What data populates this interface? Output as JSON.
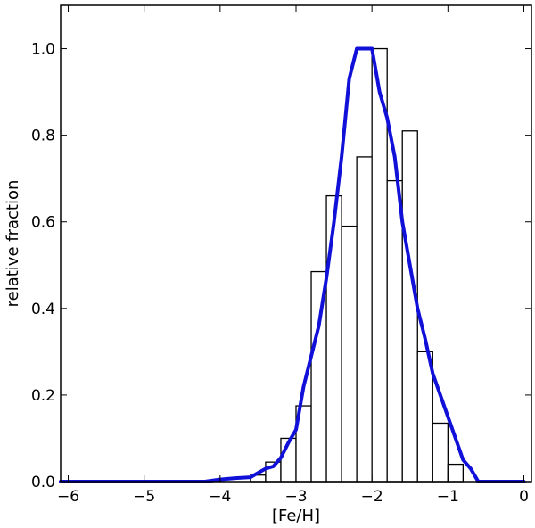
{
  "chart_data": {
    "type": "bar",
    "xlabel": "[Fe/H]",
    "ylabel": "relative fraction",
    "xlim": [
      -6.1,
      0.1
    ],
    "ylim": [
      0.0,
      1.1
    ],
    "x_ticks": [
      -6,
      -5,
      -4,
      -3,
      -2,
      -1,
      0
    ],
    "x_tick_labels": [
      "−6",
      "−5",
      "−4",
      "−3",
      "−2",
      "−1",
      "0"
    ],
    "y_ticks": [
      0.0,
      0.2,
      0.4,
      0.6,
      0.8,
      1.0
    ],
    "y_tick_labels": [
      "0.0",
      "0.2",
      "0.4",
      "0.6",
      "0.8",
      "1.0"
    ],
    "grid": false,
    "histogram": {
      "bin_width": 0.2,
      "bin_left_edges": [
        -3.6,
        -3.4,
        -3.2,
        -3.0,
        -2.8,
        -2.6,
        -2.4,
        -2.2,
        -2.0,
        -1.8,
        -1.6,
        -1.4,
        -1.2,
        -1.0
      ],
      "values": [
        0.015,
        0.045,
        0.1,
        0.175,
        0.485,
        0.66,
        0.59,
        0.75,
        1.0,
        0.695,
        0.81,
        0.3,
        0.135,
        0.04
      ],
      "fill": "#ffffff",
      "edge_color": "#000000"
    },
    "series": [
      {
        "type": "line",
        "color": "#1010d8",
        "x": [
          -6.1,
          -5.5,
          -5.0,
          -4.5,
          -4.2,
          -4.0,
          -3.8,
          -3.6,
          -3.5,
          -3.4,
          -3.3,
          -3.2,
          -3.1,
          -3.0,
          -2.9,
          -2.8,
          -2.7,
          -2.6,
          -2.5,
          -2.4,
          -2.3,
          -2.2,
          -2.1,
          -2.0,
          -1.9,
          -1.8,
          -1.7,
          -1.6,
          -1.5,
          -1.4,
          -1.3,
          -1.2,
          -1.1,
          -1.0,
          -0.9,
          -0.8,
          -0.7,
          -0.6,
          -0.5,
          -0.4,
          0.0
        ],
        "y": [
          0.0,
          0.0,
          0.0,
          0.0,
          0.0,
          0.005,
          0.008,
          0.01,
          0.02,
          0.03,
          0.035,
          0.055,
          0.09,
          0.12,
          0.22,
          0.29,
          0.36,
          0.47,
          0.6,
          0.75,
          0.93,
          1.0,
          1.0,
          1.0,
          0.9,
          0.84,
          0.75,
          0.6,
          0.5,
          0.4,
          0.33,
          0.25,
          0.2,
          0.15,
          0.1,
          0.05,
          0.03,
          0.0,
          0.0,
          0.0,
          0.0
        ]
      }
    ]
  }
}
